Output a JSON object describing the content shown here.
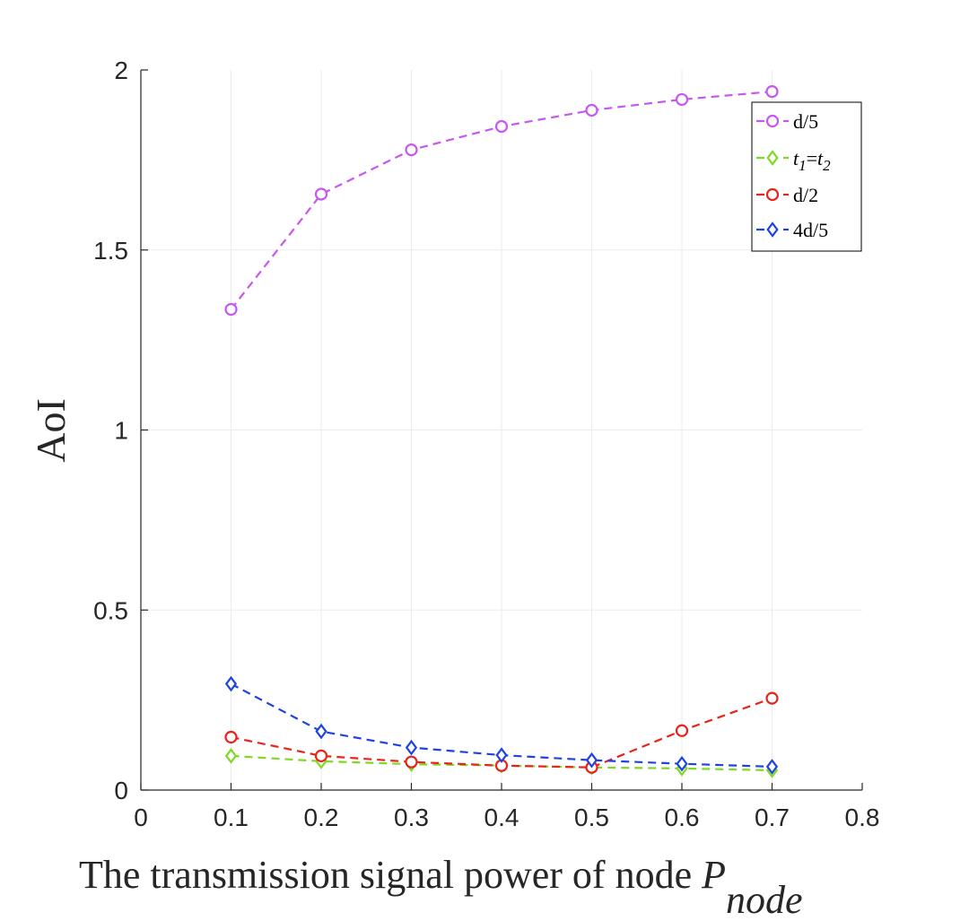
{
  "chart_data": {
    "type": "line",
    "title": "",
    "xlabel": "The transmission signal power of node ",
    "xlabel_symbol": "P",
    "xlabel_subscript": "node",
    "ylabel": "AoI",
    "xlim": [
      0,
      0.8
    ],
    "ylim": [
      0,
      2
    ],
    "xticks": [
      0,
      0.1,
      0.2,
      0.3,
      0.4,
      0.5,
      0.6,
      0.7,
      0.8
    ],
    "xtick_labels": [
      "0",
      "0.1",
      "0.2",
      "0.3",
      "0.4",
      "0.5",
      "0.6",
      "0.7",
      "0.8"
    ],
    "yticks": [
      0,
      0.5,
      1,
      1.5,
      2
    ],
    "ytick_labels": [
      "0",
      "0.5",
      "1",
      "1.5",
      "2"
    ],
    "grid": true,
    "legend_position": "top-right",
    "x": [
      0.1,
      0.2,
      0.3,
      0.4,
      0.5,
      0.6,
      0.7
    ],
    "series": [
      {
        "name": "d/5",
        "color": "#c757f0",
        "marker": "circle",
        "values": [
          1.335,
          1.655,
          1.778,
          1.843,
          1.888,
          1.918,
          1.94
        ]
      },
      {
        "name": "t1=t2",
        "label_base": "t",
        "label_sub1": "1",
        "label_eq": "=",
        "label_base2": "t",
        "label_sub2": "2",
        "color": "#7fd821",
        "marker": "diamond",
        "values": [
          0.095,
          0.08,
          0.072,
          0.068,
          0.063,
          0.06,
          0.055
        ]
      },
      {
        "name": "d/2",
        "color": "#e8241a",
        "marker": "circle",
        "values": [
          0.147,
          0.095,
          0.078,
          0.068,
          0.063,
          0.165,
          0.255
        ]
      },
      {
        "name": "4d/5",
        "color": "#1f43e0",
        "marker": "diamond",
        "values": [
          0.295,
          0.163,
          0.118,
          0.097,
          0.083,
          0.073,
          0.065
        ]
      }
    ]
  }
}
